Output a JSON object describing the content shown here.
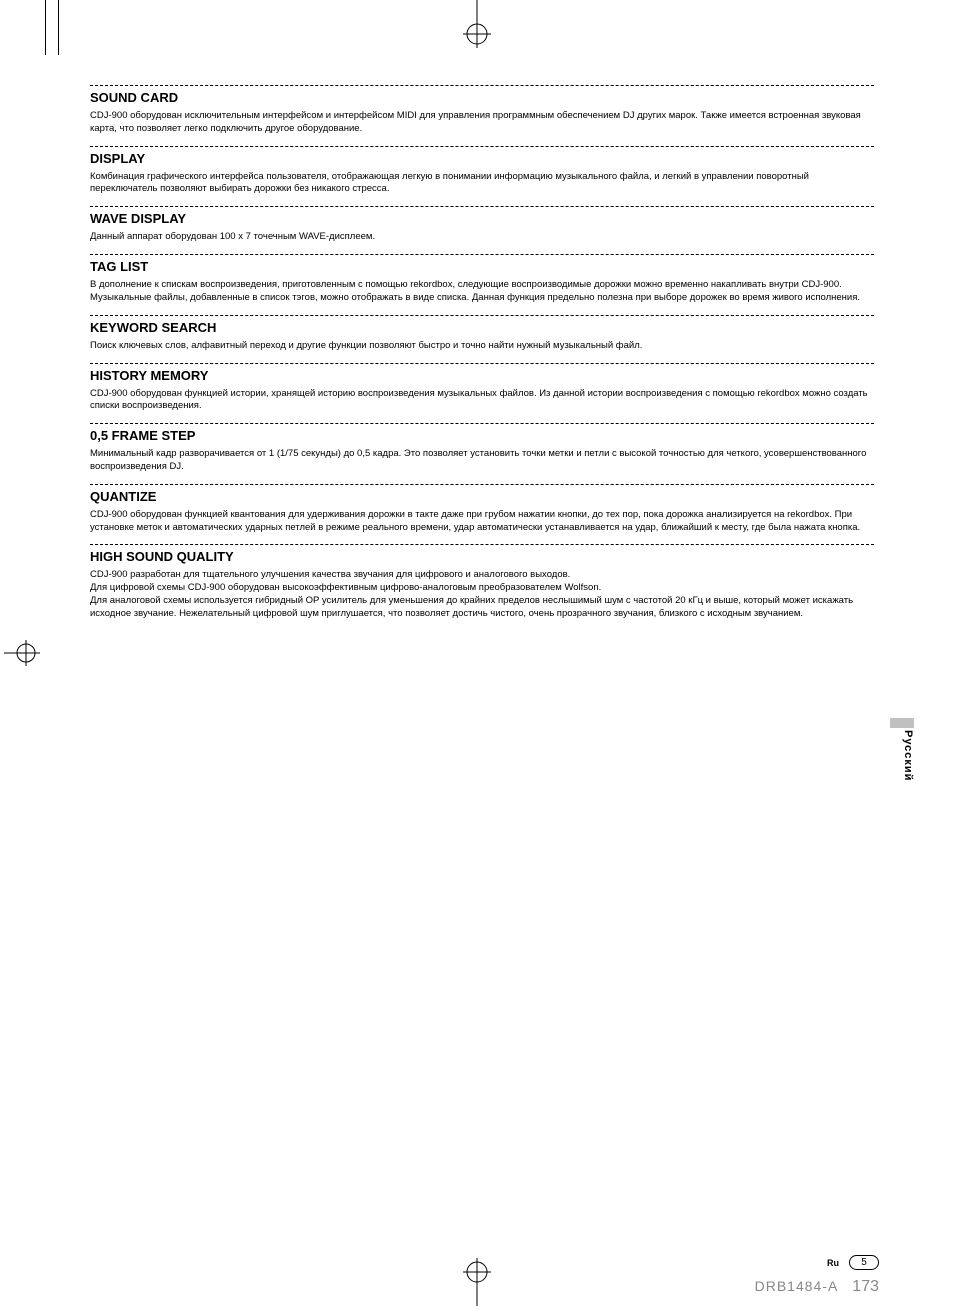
{
  "sections": [
    {
      "title": "SOUND CARD",
      "body": "CDJ-900 оборудован исключительным интерфейсом и интерфейсом MIDI для управления программным обеспечением DJ других марок. Также имеется встроенная звуковая карта, что позволяет легко подключить другое оборудование."
    },
    {
      "title": "DISPLAY",
      "body": "Комбинация графического интерфейса пользователя, отображающая легкую в понимании информацию музыкального файла, и легкий в управлении поворотный переключатель позволяют выбирать дорожки без никакого стресса."
    },
    {
      "title": "WAVE DISPLAY",
      "body": "Данный аппарат оборудован 100 x 7 точечным WAVE-дисплеем."
    },
    {
      "title": "TAG LIST",
      "body": "В дополнение к спискам воспроизведения, приготовленным с помощью rekordbox, следующие воспроизводимые дорожки можно временно накапливать внутри CDJ-900. Музыкальные файлы, добавленные в список тэгов, можно отображать в виде списка. Данная функция предельно полезна при выборе дорожек во время живого исполнения."
    },
    {
      "title": "KEYWORD SEARCH",
      "body": "Поиск ключевых слов, алфавитный переход и другие функции позволяют быстро и точно найти нужный музыкальный файл."
    },
    {
      "title": "HISTORY MEMORY",
      "body": "CDJ-900 оборудован функцией истории, хранящей историю воспроизведения музыкальных файлов. Из данной истории воспроизведения с помощью rekordbox можно создать списки воспроизведения."
    },
    {
      "title": "0,5 FRAME STEP",
      "body": "Минимальный кадр разворачивается от 1 (1/75 секунды) до 0,5 кадра. Это позволяет установить точки метки и петли с высокой точностью для четкого, усовершенствованного воспроизведения DJ."
    },
    {
      "title": "QUANTIZE",
      "body": "CDJ-900 оборудован функцией квантования для удерживания дорожки в такте даже при грубом нажатии кнопки, до тех пор, пока дорожка анализируется на rekordbox. При установке меток и автоматических ударных петлей в режиме реального времени, удар автоматически устанавливается на удар, ближайший к месту, где была нажата кнопка."
    },
    {
      "title": "HIGH SOUND QUALITY",
      "body": "CDJ-900 разработан для тщательного улучшения качества звучания для цифрового и аналогового выходов.\nДля цифровой схемы CDJ-900 оборудован высокоэффективным цифрово-аналоговым преобразователем Wolfson.\nДля аналоговой схемы используется гибридный OP усилитель для уменьшения до крайних пределов неслышимый шум с частотой 20 кГц и выше, который может искажать исходное звучание. Нежелательный цифровой шум приглушается, что позволяет достичь чистого, очень прозрачного звучания, близкого с исходным звучанием."
    }
  ],
  "side_tab": "Русский",
  "footer": {
    "lang": "Ru",
    "page_small": "5",
    "code": "DRB1484-A",
    "page_big": "173"
  },
  "colors": {
    "text": "#000000",
    "background": "#ffffff",
    "footer_gray": "#888888",
    "tab_gray": "#c0c0c0"
  }
}
